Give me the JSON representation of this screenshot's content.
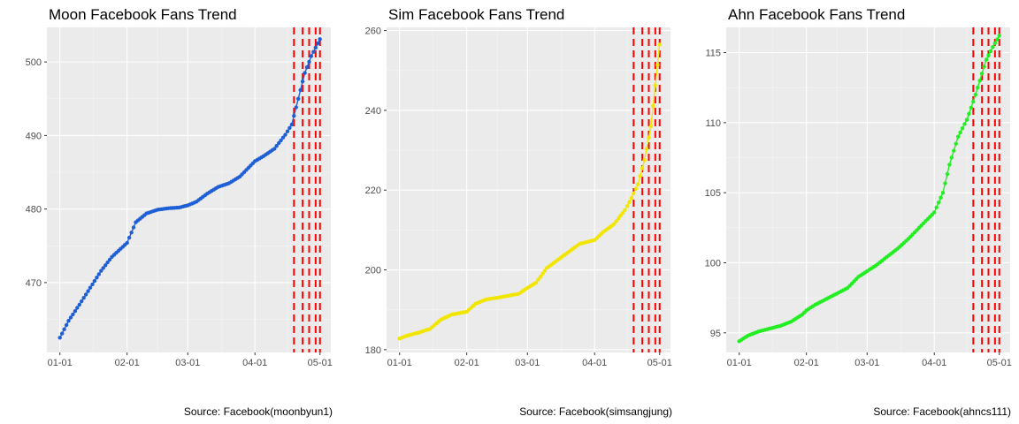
{
  "chart_data": [
    {
      "type": "scatter",
      "title": "Moon Facebook Fans Trend",
      "caption": "Source: Facebook(moonbyun1)",
      "xlabel": "",
      "ylabel": "",
      "x_ticks": [
        "01-01",
        "02-01",
        "03-01",
        "04-01",
        "05-01"
      ],
      "y_ticks": [
        470,
        480,
        490,
        500
      ],
      "ylim": [
        460.5,
        504.7
      ],
      "point_color": "#1f5fd6",
      "vline_color": "#ff0000",
      "vlines": [
        "04-19",
        "04-23",
        "04-26",
        "04-29",
        "05-01"
      ],
      "series": [
        {
          "x": [
            "01-01",
            "01-05",
            "01-10",
            "01-15",
            "01-20",
            "01-25",
            "02-01",
            "02-05",
            "02-10",
            "02-15",
            "02-20",
            "02-25",
            "03-01",
            "03-05",
            "03-10",
            "03-15",
            "03-20",
            "03-25",
            "04-01",
            "04-05",
            "04-10",
            "04-15",
            "04-18",
            "04-21",
            "04-24",
            "04-27",
            "05-01"
          ],
          "y": [
            462.5,
            464.8,
            467.0,
            469.3,
            471.6,
            473.5,
            475.4,
            478.2,
            479.4,
            479.9,
            480.1,
            480.2,
            480.5,
            481.0,
            482.1,
            483.0,
            483.5,
            484.4,
            486.5,
            487.2,
            488.2,
            490.1,
            491.5,
            495.0,
            498.5,
            500.8,
            503.1
          ]
        }
      ]
    },
    {
      "type": "scatter",
      "title": "Sim Facebook Fans Trend",
      "caption": "Source: Facebook(simsangjung)",
      "xlabel": "",
      "ylabel": "",
      "x_ticks": [
        "01-01",
        "02-01",
        "03-01",
        "04-01",
        "05-01"
      ],
      "y_ticks": [
        180,
        200,
        220,
        240,
        260
      ],
      "ylim": [
        179.3,
        260.8
      ],
      "point_color": "#f2e600",
      "vline_color": "#ff0000",
      "vlines": [
        "04-19",
        "04-23",
        "04-26",
        "04-29",
        "05-01"
      ],
      "series": [
        {
          "x": [
            "01-01",
            "01-05",
            "01-10",
            "01-15",
            "01-20",
            "01-25",
            "02-01",
            "02-05",
            "02-10",
            "02-15",
            "02-20",
            "02-25",
            "03-01",
            "03-05",
            "03-10",
            "03-15",
            "03-20",
            "03-25",
            "04-01",
            "04-05",
            "04-10",
            "04-15",
            "04-18",
            "04-21",
            "04-24",
            "04-27",
            "05-01"
          ],
          "y": [
            182.8,
            183.6,
            184.3,
            185.2,
            187.5,
            188.8,
            189.5,
            191.5,
            192.6,
            193.0,
            193.5,
            194.0,
            195.5,
            196.8,
            200.5,
            202.5,
            204.5,
            206.5,
            207.5,
            209.5,
            211.5,
            215.0,
            218.0,
            221.5,
            227.5,
            236.0,
            256.5
          ]
        }
      ]
    },
    {
      "type": "scatter",
      "title": "Ahn Facebook Fans Trend",
      "caption": "Source: Facebook(ahncs111)",
      "xlabel": "",
      "ylabel": "",
      "x_ticks": [
        "01-01",
        "02-01",
        "03-01",
        "04-01",
        "05-01"
      ],
      "y_ticks": [
        95,
        100,
        105,
        110,
        115
      ],
      "ylim": [
        93.6,
        116.8
      ],
      "point_color": "#22ee22",
      "vline_color": "#ff0000",
      "vlines": [
        "04-19",
        "04-23",
        "04-26",
        "04-29",
        "05-01"
      ],
      "series": [
        {
          "x": [
            "01-01",
            "01-05",
            "01-10",
            "01-15",
            "01-20",
            "01-25",
            "01-30",
            "02-01",
            "02-05",
            "02-10",
            "02-15",
            "02-20",
            "02-25",
            "03-01",
            "03-05",
            "03-10",
            "03-15",
            "03-20",
            "03-25",
            "04-01",
            "04-05",
            "04-08",
            "04-12",
            "04-16",
            "04-19",
            "04-22",
            "04-25",
            "04-28",
            "05-01"
          ],
          "y": [
            94.4,
            94.8,
            95.1,
            95.3,
            95.5,
            95.8,
            96.3,
            96.6,
            97.0,
            97.4,
            97.8,
            98.2,
            99.0,
            99.4,
            99.8,
            100.4,
            101.0,
            101.7,
            102.5,
            103.6,
            105.0,
            107.0,
            109.0,
            110.2,
            111.5,
            113.0,
            114.5,
            115.4,
            116.2
          ]
        }
      ]
    }
  ]
}
